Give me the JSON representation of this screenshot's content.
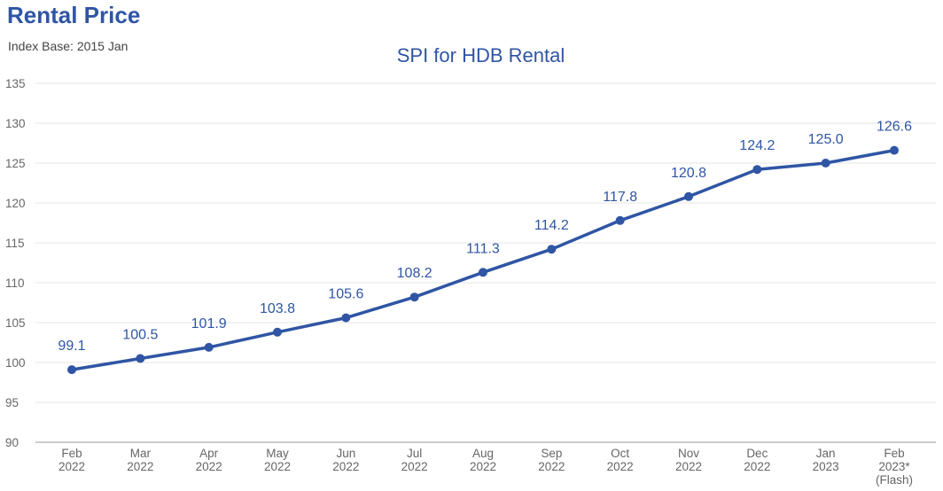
{
  "header": {
    "title": "Rental Price",
    "subtitle": "Index Base: 2015 Jan"
  },
  "chart_data": {
    "type": "line",
    "title": "SPI for HDB Rental",
    "xlabel": "",
    "ylabel": "",
    "ylim": [
      90,
      135
    ],
    "yticks": [
      90,
      95,
      100,
      105,
      110,
      115,
      120,
      125,
      130,
      135
    ],
    "grid": true,
    "categories": [
      [
        "Feb",
        "2022"
      ],
      [
        "Mar",
        "2022"
      ],
      [
        "Apr",
        "2022"
      ],
      [
        "May",
        "2022"
      ],
      [
        "Jun",
        "2022"
      ],
      [
        "Jul",
        "2022"
      ],
      [
        "Aug",
        "2022"
      ],
      [
        "Sep",
        "2022"
      ],
      [
        "Oct",
        "2022"
      ],
      [
        "Nov",
        "2022"
      ],
      [
        "Dec",
        "2022"
      ],
      [
        "Jan",
        "2023"
      ],
      [
        "Feb",
        "2023*",
        "(Flash)"
      ]
    ],
    "series": [
      {
        "name": "SPI for HDB Rental",
        "color": "#2f55a4",
        "values": [
          99.1,
          100.5,
          101.9,
          103.8,
          105.6,
          108.2,
          111.3,
          114.2,
          117.8,
          120.8,
          124.2,
          125.0,
          126.6
        ],
        "labels": [
          "99.1",
          "100.5",
          "101.9",
          "103.8",
          "105.6",
          "108.2",
          "111.3",
          "114.2",
          "117.8",
          "120.8",
          "124.2",
          "125.0",
          "126.6"
        ]
      }
    ]
  }
}
